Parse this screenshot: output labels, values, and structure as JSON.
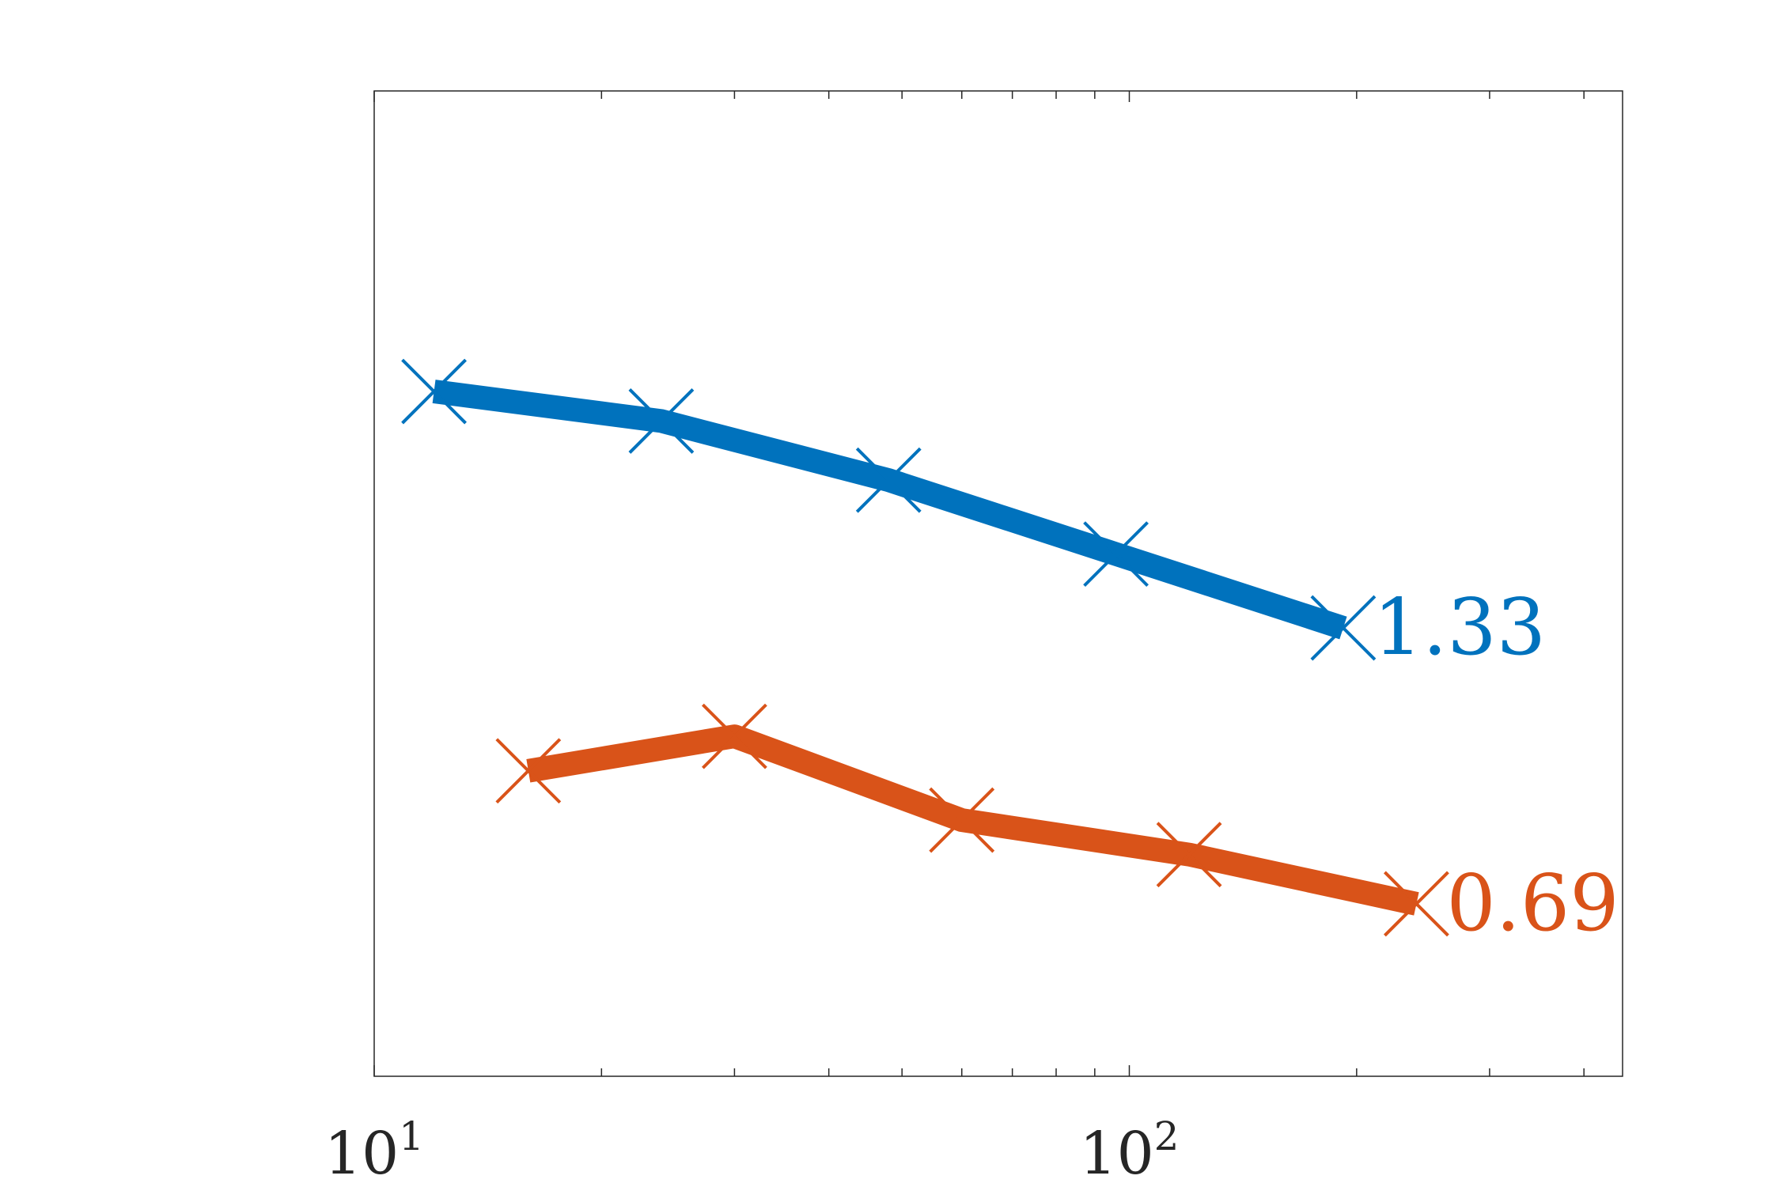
{
  "chart_data": {
    "type": "line",
    "xscale": "log",
    "xlim": [
      10,
      450
    ],
    "ylim": [
      0,
      1
    ],
    "grid": false,
    "legend": "none",
    "x_tick_labels": [
      {
        "value": 10,
        "base": "10",
        "exp": "1"
      },
      {
        "value": 100,
        "base": "10",
        "exp": "2"
      }
    ],
    "series": [
      {
        "color": "#0072BD",
        "x": [
          12,
          24,
          48,
          96,
          192
        ],
        "y": [
          0.695,
          0.665,
          0.605,
          0.53,
          0.455
        ],
        "end_label": "1.33"
      },
      {
        "color": "#D95319",
        "x": [
          16,
          30,
          60,
          120,
          240
        ],
        "y": [
          0.31,
          0.345,
          0.26,
          0.225,
          0.175
        ],
        "end_label": "0.69"
      }
    ]
  }
}
